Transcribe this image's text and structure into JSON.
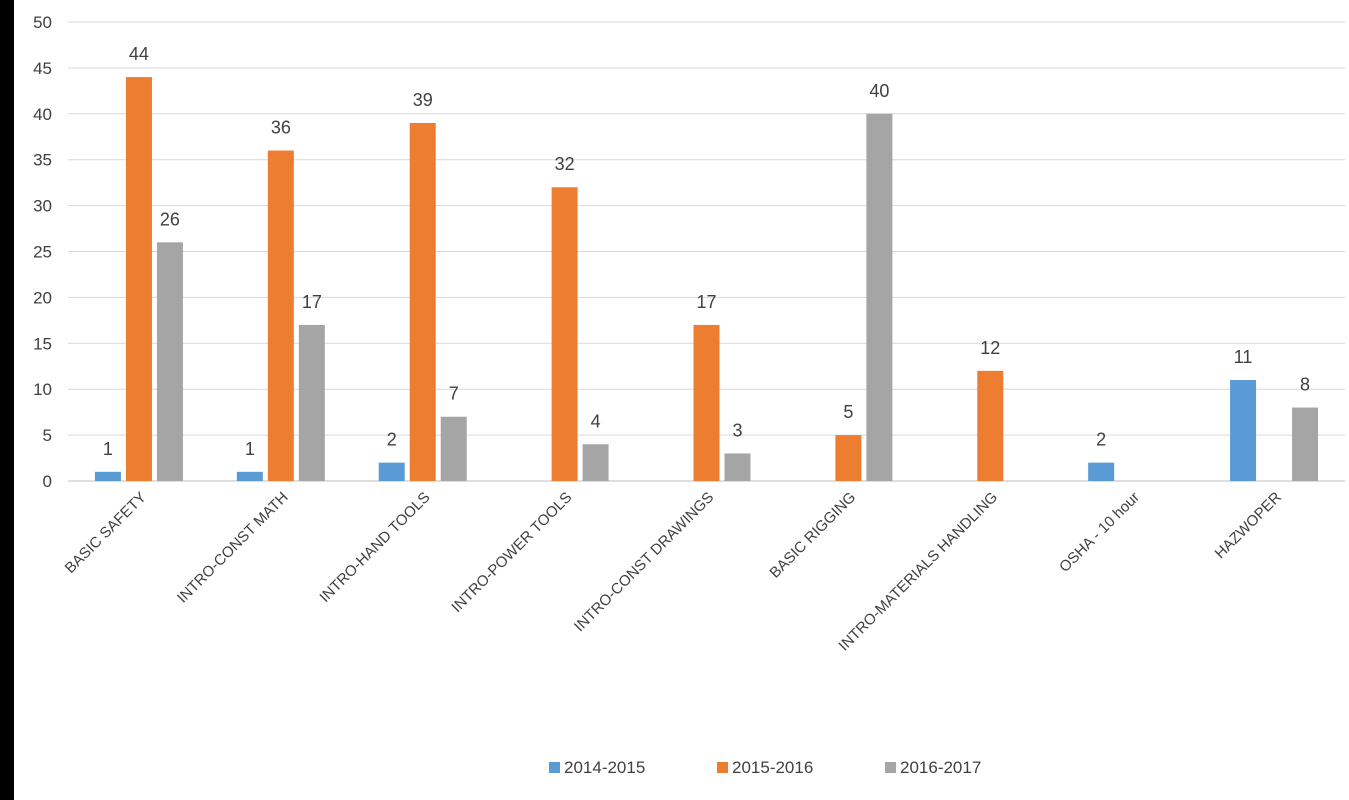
{
  "chart_data": {
    "type": "bar",
    "title": "",
    "xlabel": "",
    "ylabel": "",
    "ylim": [
      0,
      50
    ],
    "ytick_step": 5,
    "grid": true,
    "legend_position": "bottom",
    "categories": [
      "BASIC SAFETY",
      "INTRO-CONST MATH",
      "INTRO-HAND TOOLS",
      "INTRO-POWER TOOLS",
      "INTRO-CONST DRAWINGS",
      "BASIC RIGGING",
      "INTRO-MATERIALS HANDLING",
      "OSHA - 10 hour",
      "HAZWOPER"
    ],
    "series": [
      {
        "name": "2014-2015",
        "color": "#5b9bd5",
        "values": [
          1,
          1,
          2,
          null,
          null,
          null,
          null,
          2,
          11
        ]
      },
      {
        "name": "2015-2016",
        "color": "#ed7d31",
        "values": [
          44,
          36,
          39,
          32,
          17,
          5,
          12,
          null,
          null
        ]
      },
      {
        "name": "2016-2017",
        "color": "#a5a5a5",
        "values": [
          26,
          17,
          7,
          4,
          3,
          40,
          null,
          null,
          8
        ]
      }
    ]
  }
}
